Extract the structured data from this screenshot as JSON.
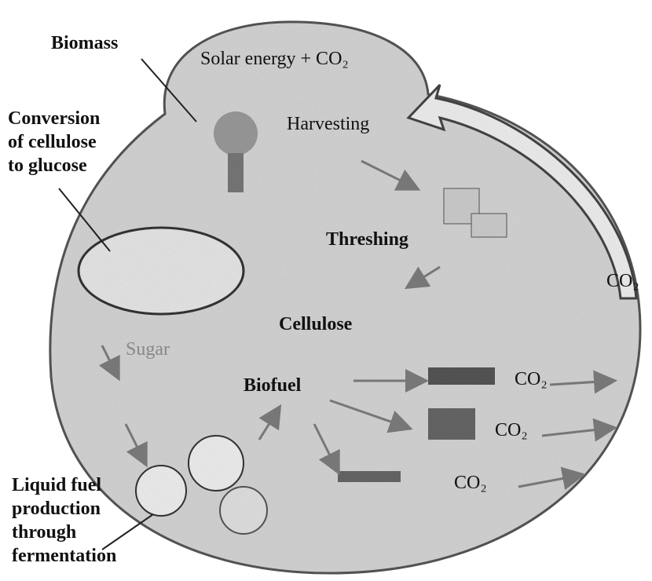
{
  "nodes": [
    {
      "lines": [
        "Biomass"
      ]
    },
    {
      "lines": [
        "Solar energy + CO₂"
      ]
    },
    {
      "lines": [
        "Conversion",
        "of cellulose",
        "to glucose"
      ]
    },
    {
      "lines": [
        "Harvesting"
      ]
    },
    {
      "lines": [
        "Threshing"
      ]
    },
    {
      "lines": [
        "CO₂"
      ]
    },
    {
      "lines": [
        "Cellulose"
      ]
    },
    {
      "lines": [
        "Sugar"
      ]
    },
    {
      "lines": [
        "Biofuel"
      ]
    },
    {
      "lines": [
        "CO₂"
      ]
    },
    {
      "lines": [
        "CO₂"
      ]
    },
    {
      "lines": [
        "CO₂"
      ]
    },
    {
      "lines": [
        "Liquid fuel",
        "production",
        "through",
        "fermentation"
      ]
    }
  ]
}
